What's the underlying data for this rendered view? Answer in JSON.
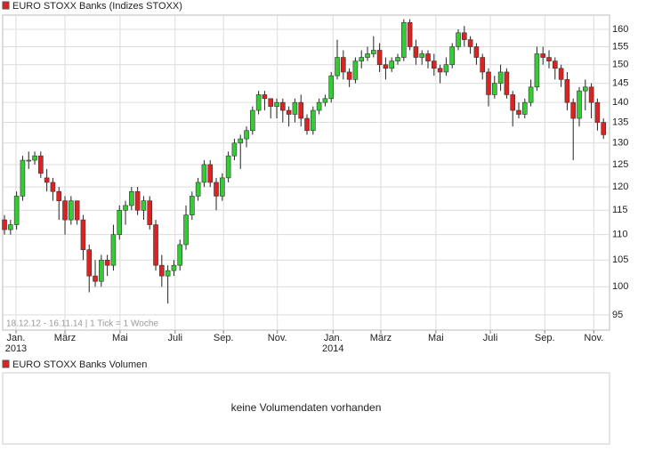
{
  "chart_data": {
    "type": "candlestick",
    "series": [
      {
        "name": "EURO STOXX Banks (Indizes STOXX)",
        "up_color": "#33cc33",
        "down_color": "#dd2222",
        "open": [
          113,
          111,
          112,
          118,
          126,
          126,
          127,
          122,
          121,
          119,
          117,
          113,
          117,
          113,
          107,
          102,
          101,
          105,
          104,
          110,
          115,
          116,
          119,
          115,
          117,
          112,
          104,
          102,
          103,
          104,
          108,
          114,
          118,
          121,
          125,
          121,
          118,
          122,
          127,
          130,
          131,
          133,
          138,
          142,
          141,
          139,
          140,
          138,
          137,
          140,
          136,
          133,
          138,
          140,
          141,
          147,
          152,
          148,
          146,
          151,
          152,
          153,
          154,
          150,
          149,
          151,
          152,
          162,
          155,
          152,
          153,
          151,
          149,
          148,
          150,
          155,
          159,
          157,
          155,
          152,
          148,
          142,
          145,
          148,
          142,
          138,
          137,
          140,
          144,
          153,
          152,
          151,
          149,
          146,
          140,
          136,
          143,
          144,
          140,
          135
        ],
        "high": [
          114,
          113,
          119,
          127,
          128,
          128,
          128,
          124,
          122,
          120,
          118,
          118,
          117,
          114,
          108,
          105,
          106,
          106,
          112,
          116,
          117,
          120,
          120,
          118,
          118,
          113,
          106,
          104,
          105,
          109,
          116,
          119,
          122,
          126,
          126,
          122,
          123,
          128,
          131,
          132,
          134,
          139,
          143,
          143,
          141,
          141,
          141,
          139,
          141,
          142,
          137,
          139,
          141,
          142,
          148,
          157,
          154,
          149,
          152,
          154,
          155,
          158,
          156,
          152,
          152,
          153,
          163,
          163,
          157,
          154,
          154,
          153,
          150,
          152,
          156,
          160,
          161,
          158,
          156,
          153,
          149,
          147,
          150,
          149,
          143,
          140,
          141,
          146,
          155,
          155,
          154,
          152,
          150,
          148,
          141,
          144,
          146,
          145,
          141,
          136
        ],
        "low": [
          110,
          110,
          111,
          117,
          124,
          125,
          122,
          119,
          117,
          113,
          110,
          112,
          112,
          105,
          99,
          100,
          100,
          102,
          103,
          109,
          112,
          115,
          114,
          113,
          111,
          103,
          100,
          97,
          102,
          103,
          107,
          113,
          117,
          120,
          120,
          115,
          117,
          121,
          126,
          124,
          129,
          132,
          137,
          138,
          136,
          136,
          135,
          134,
          135,
          134,
          132,
          132,
          137,
          139,
          140,
          146,
          146,
          144,
          145,
          149,
          151,
          152,
          148,
          146,
          148,
          150,
          151,
          154,
          150,
          150,
          149,
          147,
          145,
          147,
          149,
          154,
          155,
          153,
          150,
          146,
          139,
          141,
          143,
          141,
          134,
          136,
          136,
          139,
          143,
          150,
          149,
          146,
          144,
          138,
          126,
          134,
          138,
          136,
          133,
          131
        ],
        "close": [
          111,
          112,
          118,
          126,
          126,
          127,
          123,
          121,
          119,
          117,
          113,
          117,
          113,
          107,
          102,
          101,
          105,
          104,
          110,
          115,
          116,
          119,
          115,
          117,
          112,
          104,
          102,
          103,
          104,
          108,
          114,
          118,
          121,
          125,
          121,
          118,
          122,
          127,
          130,
          131,
          133,
          138,
          142,
          141,
          139,
          140,
          138,
          137,
          140,
          136,
          133,
          138,
          140,
          141,
          147,
          152,
          148,
          146,
          151,
          152,
          153,
          154,
          150,
          149,
          151,
          152,
          162,
          155,
          152,
          153,
          151,
          149,
          148,
          150,
          155,
          159,
          157,
          155,
          152,
          148,
          142,
          145,
          148,
          142,
          138,
          137,
          140,
          144,
          153,
          152,
          151,
          149,
          146,
          140,
          136,
          143,
          144,
          140,
          135,
          132
        ]
      }
    ],
    "ylim": [
      92.4,
      164.2
    ],
    "log_y": true,
    "grid": true,
    "yticks": [
      95,
      100,
      105,
      110,
      115,
      120,
      125,
      130,
      135,
      140,
      145,
      150,
      155,
      160
    ],
    "xlim": [
      -0.3,
      100
    ],
    "xticks": [
      {
        "value": 1.9,
        "label": "Jan."
      },
      {
        "value": 10,
        "label": "März"
      },
      {
        "value": 19.1,
        "label": "Mai"
      },
      {
        "value": 28.2,
        "label": "Juli"
      },
      {
        "value": 36.2,
        "label": "Sep."
      },
      {
        "value": 45.1,
        "label": "Nov."
      },
      {
        "value": 54.3,
        "label": "Jan."
      },
      {
        "value": 62.2,
        "label": "März"
      },
      {
        "value": 71.3,
        "label": "Mai"
      },
      {
        "value": 80.3,
        "label": "Juli"
      },
      {
        "value": 89.3,
        "label": "Sep."
      },
      {
        "value": 97.4,
        "label": "Nov."
      }
    ],
    "year_ticks": [
      {
        "value": 1.9,
        "label": "2013"
      },
      {
        "value": 54.3,
        "label": "2014"
      }
    ],
    "footnote": "18.12.12 - 16.11.14 | 1 Tick = 1 Woche"
  },
  "volume_panel": {
    "title": "EURO STOXX Banks Volumen",
    "message": "keine Volumendaten vorhanden"
  }
}
